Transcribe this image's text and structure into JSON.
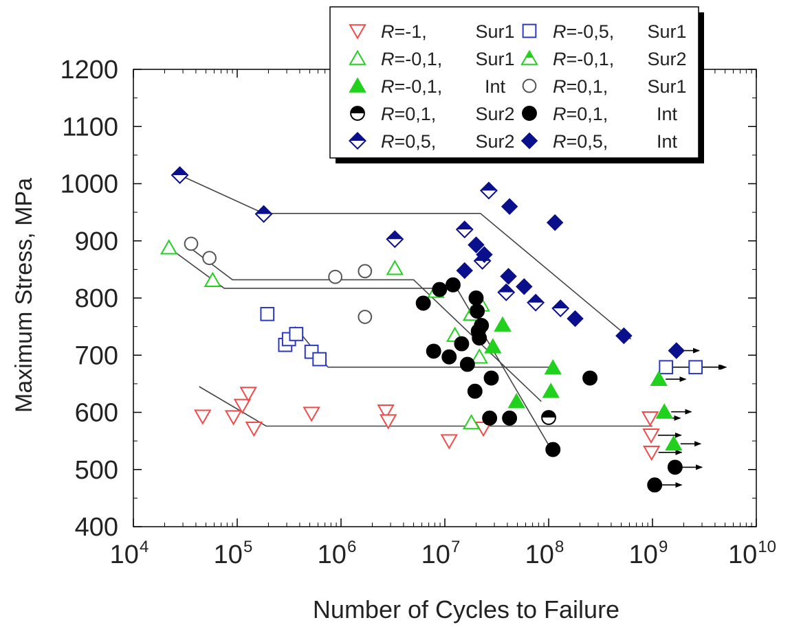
{
  "chart_data": {
    "type": "scatter",
    "title": "",
    "xlabel": "Number of Cycles to Failure",
    "ylabel": "Maximum Stress, MPa",
    "xscale": "log",
    "xlim_exp": [
      4,
      10
    ],
    "ylim": [
      400,
      1200
    ],
    "x_tick_base": "10",
    "x_tick_exponents": [
      "4",
      "5",
      "6",
      "7",
      "8",
      "9",
      "10"
    ],
    "y_ticks": [
      "400",
      "500",
      "600",
      "700",
      "800",
      "900",
      "1000",
      "1100",
      "1200"
    ],
    "legend_position": "top-right",
    "colors": {
      "red": "#f04a4a",
      "blue": "#2b38c4",
      "green": "#22d11e",
      "navy": "#0a0f8c",
      "black": "#000000",
      "grey": "#555555"
    },
    "series": [
      {
        "key": "r_m1_sur1",
        "legend_r": "R",
        "legend_label": "=-1,",
        "legend_loc": "Sur1",
        "marker": "tri-down-open",
        "color": "#f04a4a",
        "points": [
          [
            46500.0,
            593
          ],
          [
            92000.0,
            592
          ],
          [
            112000.0,
            612
          ],
          [
            128000.0,
            633
          ],
          [
            145000.0,
            572
          ],
          [
            520000.0,
            598
          ],
          [
            2700000.0,
            602
          ],
          [
            2850000.0,
            585
          ],
          [
            11000000.0,
            550
          ],
          [
            23500000.0,
            572
          ],
          [
            950000000.0,
            590
          ],
          [
            970000000.0,
            560
          ],
          [
            980000000.0,
            530
          ]
        ]
      },
      {
        "key": "r_m05_sur1",
        "legend_r": "R",
        "legend_label": "=-0,5,",
        "legend_loc": "Sur1",
        "marker": "square-open",
        "color": "#2b38c4",
        "points": [
          [
            195000.0,
            772
          ],
          [
            290000.0,
            718
          ],
          [
            315000.0,
            728
          ],
          [
            370000.0,
            737
          ],
          [
            520000.0,
            706
          ],
          [
            620000.0,
            693
          ],
          [
            1350000000.0,
            679
          ],
          [
            2600000000.0,
            679
          ]
        ]
      },
      {
        "key": "r_m01_sur1",
        "legend_r": "R",
        "legend_label": "=-0,1,",
        "legend_loc": "Sur1",
        "marker": "tri-up-open",
        "color": "#22d11e",
        "points": [
          [
            22000.0,
            888
          ],
          [
            58000.0,
            831
          ],
          [
            3300000.0,
            852
          ],
          [
            12500000.0,
            735
          ],
          [
            18000000.0,
            582
          ],
          [
            21500000.0,
            697
          ],
          [
            22500000.0,
            788
          ]
        ]
      },
      {
        "key": "r_m01_sur2",
        "legend_r": "R",
        "legend_label": "=-0,1,",
        "legend_loc": "Sur2",
        "marker": "tri-up-half",
        "color": "#22d11e",
        "points": [
          [
            8200000.0,
            812
          ],
          [
            18000000.0,
            772
          ]
        ]
      },
      {
        "key": "r_m01_int",
        "legend_r": "R",
        "legend_label": "=-0,1,",
        "legend_loc": "Int",
        "marker": "tri-up-filled",
        "color": "#22d11e",
        "points": [
          [
            29000000.0,
            715
          ],
          [
            36000000.0,
            753
          ],
          [
            49000000.0,
            619
          ],
          [
            105000000.0,
            637
          ],
          [
            110000000.0,
            678
          ],
          [
            1150000000.0,
            658
          ],
          [
            1300000000.0,
            601
          ],
          [
            1600000000.0,
            545
          ]
        ]
      },
      {
        "key": "r_01_sur1",
        "legend_r": "R",
        "legend_label": "=0,1,",
        "legend_loc": "Sur1",
        "marker": "circle-open",
        "color": "#555555",
        "points": [
          [
            36000.0,
            895
          ],
          [
            54000.0,
            870
          ],
          [
            880000.0,
            837
          ],
          [
            1700000.0,
            847
          ],
          [
            1700000.0,
            767
          ]
        ]
      },
      {
        "key": "r_01_sur2",
        "legend_r": "R",
        "legend_label": "=0,1,",
        "legend_loc": "Sur2",
        "marker": "circle-half",
        "color": "#000000",
        "points": [
          [
            100000000.0,
            591
          ]
        ]
      },
      {
        "key": "r_01_int",
        "legend_r": "R",
        "legend_label": "=0,1,",
        "legend_loc": "Int",
        "marker": "circle-filled",
        "color": "#000000",
        "points": [
          [
            6200000.0,
            791
          ],
          [
            7800000.0,
            707
          ],
          [
            8900000.0,
            815
          ],
          [
            11000000.0,
            697
          ],
          [
            12000000.0,
            823
          ],
          [
            14500000.0,
            720
          ],
          [
            16500000.0,
            684
          ],
          [
            19500000.0,
            637
          ],
          [
            20000000.0,
            800
          ],
          [
            20500000.0,
            777
          ],
          [
            21000000.0,
            742
          ],
          [
            21500000.0,
            730
          ],
          [
            22500000.0,
            752
          ],
          [
            27000000.0,
            590
          ],
          [
            28000000.0,
            660
          ],
          [
            42000000.0,
            590
          ],
          [
            110000000.0,
            535
          ],
          [
            250000000.0,
            660
          ],
          [
            1050000000.0,
            473
          ],
          [
            1650000000.0,
            504
          ]
        ]
      },
      {
        "key": "r_05_sur2",
        "legend_r": "R",
        "legend_label": "=0,5,",
        "legend_loc": "Sur2",
        "marker": "diamond-half",
        "color": "#0a0f8c",
        "points": [
          [
            28000.0,
            1015
          ],
          [
            180000.0,
            947
          ],
          [
            3300000.0,
            903
          ],
          [
            15500000.0,
            920
          ],
          [
            23000000.0,
            865
          ],
          [
            26500000.0,
            988
          ],
          [
            39000000.0,
            810
          ],
          [
            75000000.0,
            792
          ],
          [
            130000000.0,
            782
          ]
        ]
      },
      {
        "key": "r_05_int",
        "legend_r": "R",
        "legend_label": "=0,5,",
        "legend_loc": "Int",
        "marker": "diamond-filled",
        "color": "#0a0f8c",
        "points": [
          [
            15500000.0,
            848
          ],
          [
            20000000.0,
            893
          ],
          [
            24000000.0,
            876
          ],
          [
            41000000.0,
            838
          ],
          [
            42000000.0,
            960
          ],
          [
            58000000.0,
            820
          ],
          [
            115000000.0,
            932
          ],
          [
            180000000.0,
            764
          ],
          [
            530000000.0,
            734
          ],
          [
            1700000000.0,
            708
          ]
        ]
      }
    ],
    "fit_lines": [
      {
        "key": "fit-r05",
        "points": [
          [
            28000.0,
            1015
          ],
          [
            180000.0,
            948
          ],
          [
            22000000.0,
            948
          ],
          [
            620000000.0,
            728
          ]
        ]
      },
      {
        "key": "fit-r01-upper",
        "points": [
          [
            35000.0,
            888
          ],
          [
            90000.0,
            832
          ],
          [
            5000000.0,
            832
          ],
          [
            85000000.0,
            619
          ]
        ]
      },
      {
        "key": "fit-r01-lower",
        "points": [
          [
            22000.0,
            888
          ],
          [
            75000.0,
            817
          ],
          [
            13000000.0,
            817
          ],
          [
            110000000.0,
            530
          ]
        ]
      },
      {
        "key": "fit-r-05",
        "points": [
          [
            360000.0,
            750
          ],
          [
            750000.0,
            679
          ],
          [
            100000000.0,
            679
          ]
        ]
      },
      {
        "key": "fit-r-1",
        "points": [
          [
            43000.0,
            645
          ],
          [
            190000.0,
            576
          ],
          [
            1000000000.0,
            576
          ]
        ]
      }
    ],
    "runout_arrows": [
      {
        "x": 1700000000.0,
        "y": 708,
        "len_exp": 0.22
      },
      {
        "x": 1350000000.0,
        "y": 679,
        "len_exp": 0.58
      },
      {
        "x": 2600000000.0,
        "y": 679,
        "len_exp": 0.28
      },
      {
        "x": 1150000000.0,
        "y": 658,
        "len_exp": 0.26
      },
      {
        "x": 1300000000.0,
        "y": 601,
        "len_exp": 0.26
      },
      {
        "x": 950000000.0,
        "y": 590,
        "len_exp": 0.29
      },
      {
        "x": 970000000.0,
        "y": 560,
        "len_exp": 0.29
      },
      {
        "x": 980000000.0,
        "y": 530,
        "len_exp": 0.29
      },
      {
        "x": 1600000000.0,
        "y": 545,
        "len_exp": 0.26
      },
      {
        "x": 1650000000.0,
        "y": 504,
        "len_exp": 0.26
      },
      {
        "x": 1050000000.0,
        "y": 473,
        "len_exp": 0.26
      }
    ]
  }
}
